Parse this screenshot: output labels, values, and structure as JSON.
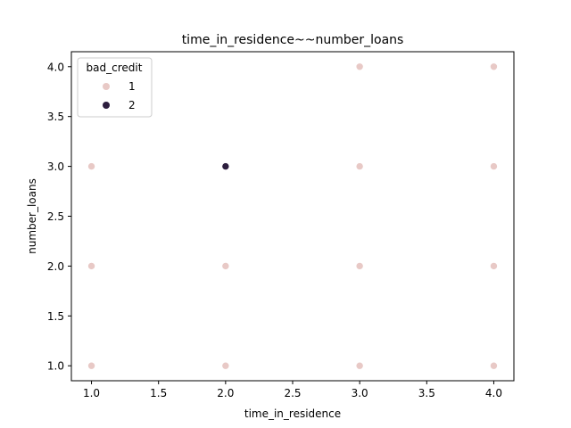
{
  "chart_data": {
    "type": "scatter",
    "title": "time_in_residence~~number_loans",
    "xlabel": "time_in_residence",
    "ylabel": "number_loans",
    "xlim": [
      0.85,
      4.15
    ],
    "ylim": [
      0.85,
      4.15
    ],
    "xticks": [
      "1.0",
      "1.5",
      "2.0",
      "2.5",
      "3.0",
      "3.5",
      "4.0"
    ],
    "yticks": [
      "1.0",
      "1.5",
      "2.0",
      "2.5",
      "3.0",
      "3.5",
      "4.0"
    ],
    "grid": false,
    "legend": {
      "title": "bad_credit",
      "placement": "upper-left"
    },
    "series": [
      {
        "name": "1",
        "color": "#e8c9c6",
        "points": [
          [
            1,
            1
          ],
          [
            1,
            2
          ],
          [
            1,
            3
          ],
          [
            2,
            1
          ],
          [
            2,
            2
          ],
          [
            3,
            1
          ],
          [
            3,
            2
          ],
          [
            3,
            3
          ],
          [
            3,
            4
          ],
          [
            4,
            1
          ],
          [
            4,
            2
          ],
          [
            4,
            3
          ],
          [
            4,
            4
          ]
        ]
      },
      {
        "name": "2",
        "color": "#2d1e3e",
        "points": [
          [
            2,
            3
          ]
        ]
      }
    ]
  }
}
